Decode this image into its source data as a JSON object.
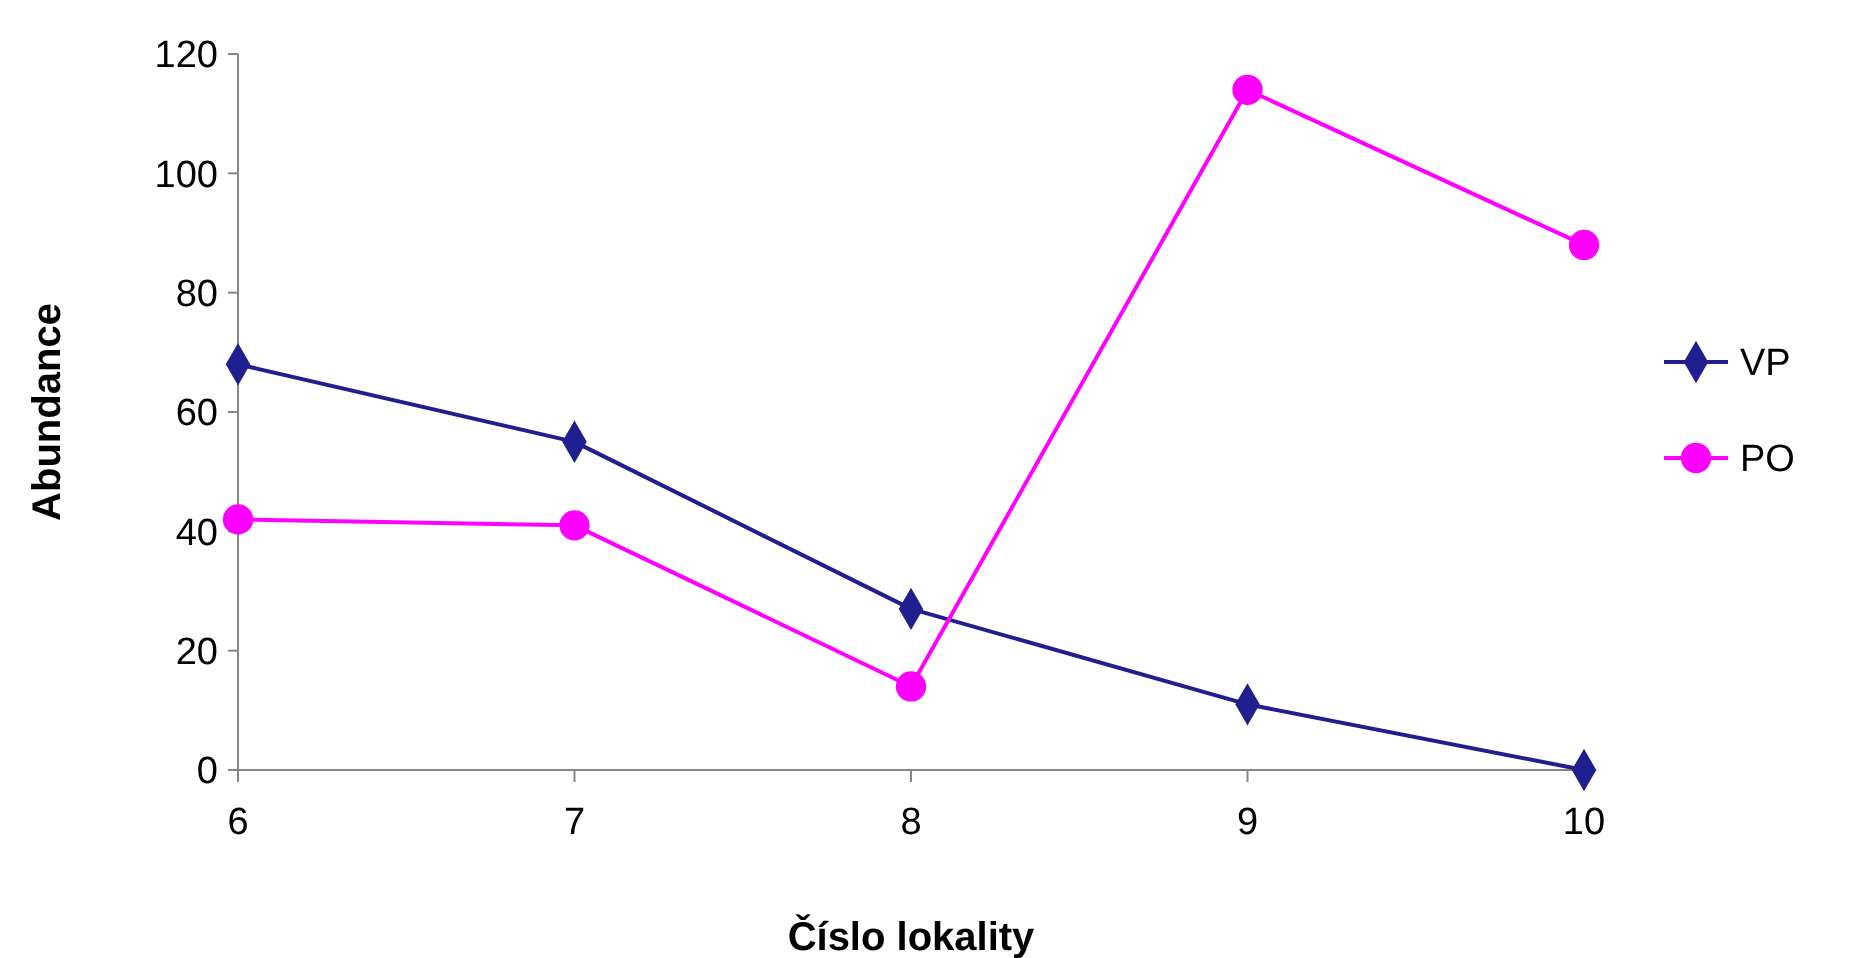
{
  "chart_data": {
    "type": "line",
    "xlabel": "Číslo lokality",
    "ylabel": "Abundance",
    "categories": [
      "6",
      "7",
      "8",
      "9",
      "10"
    ],
    "ylim": [
      0,
      120
    ],
    "yticks": [
      0,
      20,
      40,
      60,
      80,
      100,
      120
    ],
    "grid": false,
    "legend": "right",
    "series": [
      {
        "name": "VP",
        "color": "#1f1f8f",
        "marker": "diamond",
        "values": [
          68,
          55,
          27,
          11,
          0
        ]
      },
      {
        "name": "PO",
        "color": "#ff00ff",
        "marker": "circle",
        "values": [
          42,
          41,
          14,
          114,
          88
        ]
      }
    ]
  }
}
